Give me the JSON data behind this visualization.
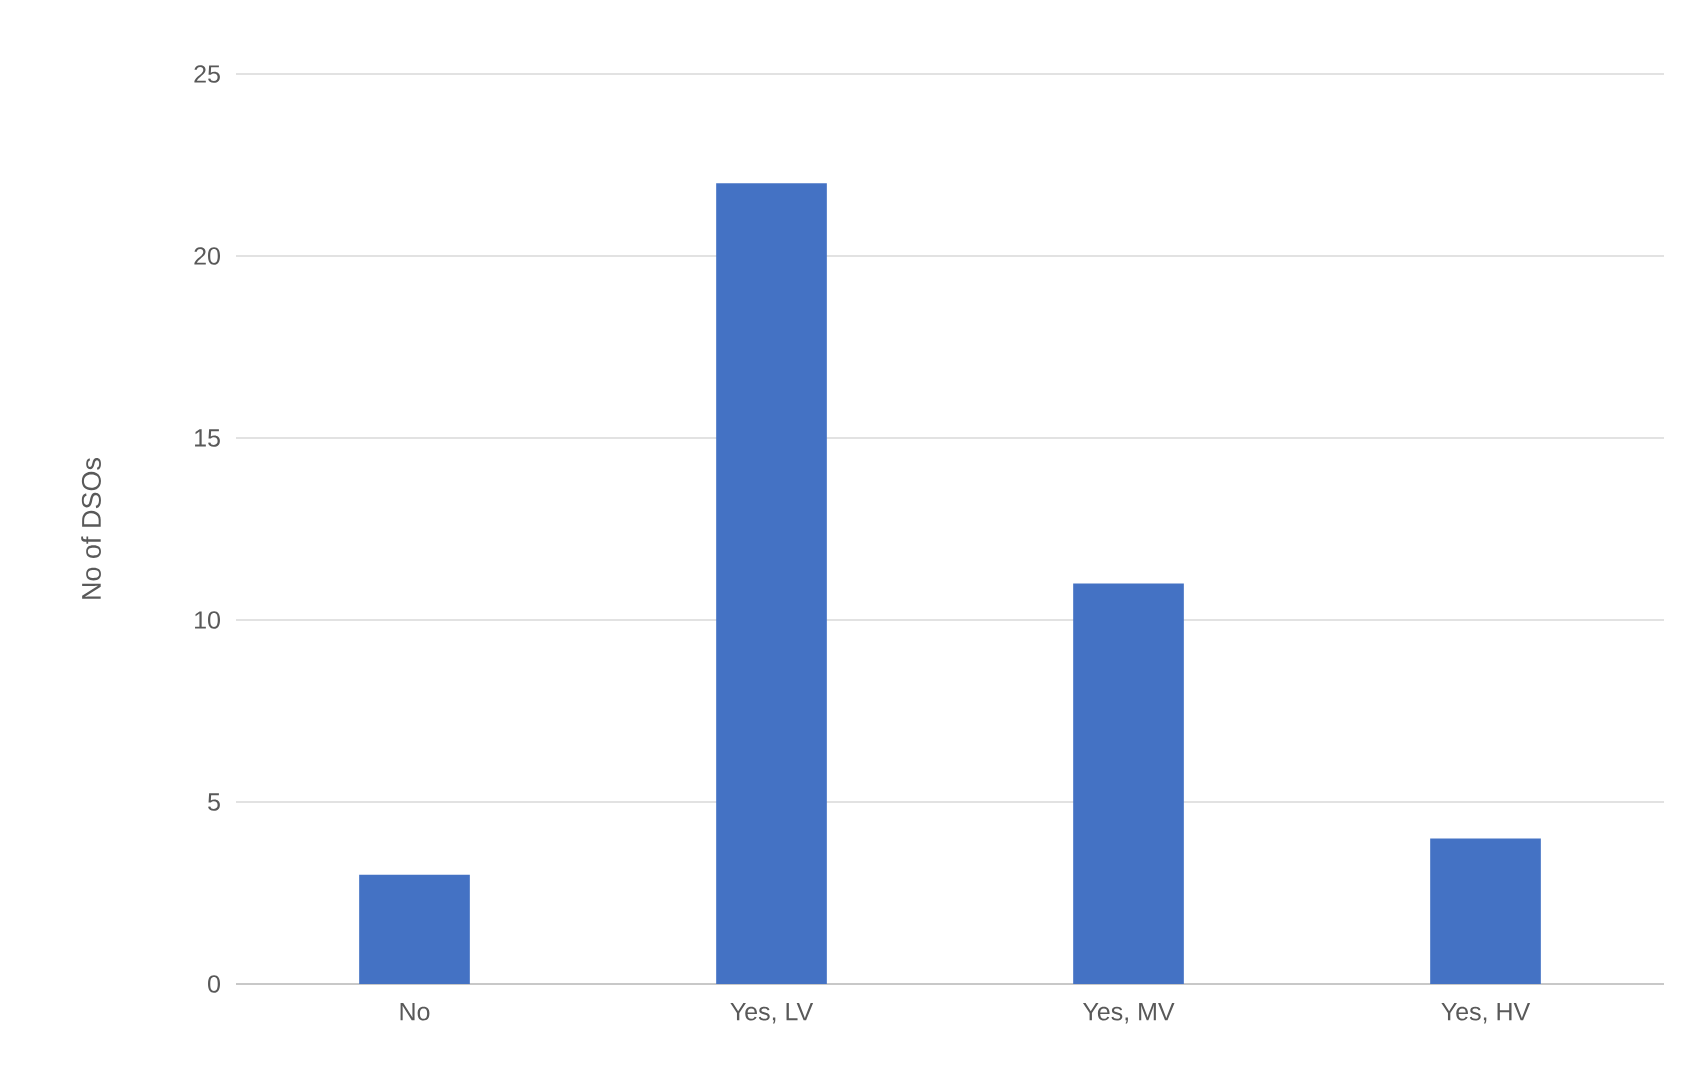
{
  "chart_data": {
    "type": "bar",
    "ylabel": "No of DSOs",
    "categories": [
      "No",
      "Yes, LV",
      "Yes, MV",
      "Yes, HV"
    ],
    "values": [
      3,
      22,
      11,
      4
    ],
    "color": "#4472c4",
    "ylim": [
      0,
      25
    ],
    "yticks": [
      0,
      5,
      10,
      15,
      20,
      25
    ],
    "grid": "y"
  }
}
